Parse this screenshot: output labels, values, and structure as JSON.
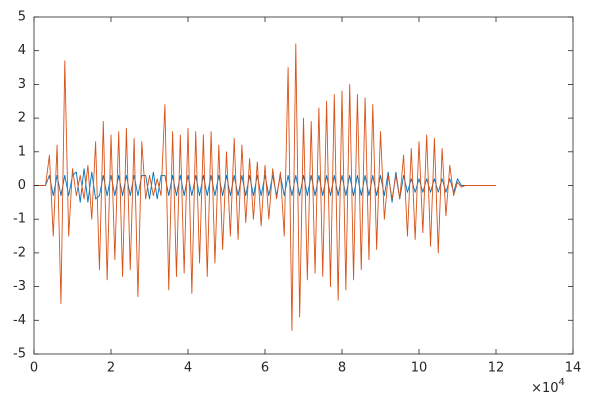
{
  "chart_data": {
    "type": "line",
    "x": [
      0,
      0.1,
      0.2,
      0.3,
      0.4,
      0.5,
      0.6,
      0.7,
      0.8,
      0.9,
      1,
      1.1,
      1.2,
      1.3,
      1.4,
      1.5,
      1.6,
      1.7,
      1.8,
      1.9,
      2,
      2.1,
      2.2,
      2.3,
      2.4,
      2.5,
      2.6,
      2.7,
      2.8,
      2.9,
      3,
      3.1,
      3.2,
      3.3,
      3.4,
      3.5,
      3.6,
      3.7,
      3.8,
      3.9,
      4,
      4.1,
      4.2,
      4.3,
      4.4,
      4.5,
      4.6,
      4.7,
      4.8,
      4.9,
      5,
      5.1,
      5.2,
      5.3,
      5.4,
      5.5,
      5.6,
      5.7,
      5.8,
      5.9,
      6,
      6.1,
      6.2,
      6.3,
      6.4,
      6.5,
      6.6,
      6.7,
      6.8,
      6.9,
      7,
      7.1,
      7.2,
      7.3,
      7.4,
      7.5,
      7.6,
      7.7,
      7.8,
      7.9,
      8,
      8.1,
      8.2,
      8.3,
      8.4,
      8.5,
      8.6,
      8.7,
      8.8,
      8.9,
      9,
      9.1,
      9.2,
      9.3,
      9.4,
      9.5,
      9.6,
      9.7,
      9.8,
      9.9,
      10,
      10.1,
      10.2,
      10.3,
      10.4,
      10.5,
      10.6,
      10.7,
      10.8,
      10.9,
      11,
      11.1,
      11.2,
      11.3,
      11.4,
      11.5,
      11.6,
      11.7,
      11.8,
      11.9,
      12
    ],
    "series": [
      {
        "color": "#0072bd",
        "values": [
          0,
          0,
          0,
          0,
          0.3,
          -0.3,
          0.3,
          -0.3,
          0.3,
          -0.3,
          0.3,
          0.4,
          -0.5,
          0.5,
          -0.5,
          0.4,
          -0.4,
          -0.3,
          0.3,
          -0.3,
          0.3,
          -0.3,
          0.3,
          -0.3,
          0.3,
          -0.3,
          0.3,
          -0.3,
          0.3,
          0.3,
          -0.4,
          0.4,
          -0.4,
          0.3,
          0.3,
          -0.3,
          0.3,
          -0.3,
          0.3,
          -0.3,
          0.3,
          -0.3,
          0.3,
          -0.3,
          0.3,
          -0.3,
          0.3,
          -0.3,
          0.3,
          -0.3,
          0.3,
          -0.3,
          0.3,
          -0.3,
          0.3,
          -0.3,
          0.3,
          -0.3,
          0.3,
          -0.3,
          0.3,
          -0.3,
          0.3,
          -0.3,
          0.3,
          -0.3,
          0.3,
          -0.3,
          0.3,
          -0.3,
          0.3,
          -0.3,
          0.3,
          -0.3,
          0.3,
          -0.3,
          0.3,
          -0.3,
          0.3,
          -0.3,
          0.3,
          -0.3,
          0.3,
          -0.3,
          0.3,
          -0.3,
          0.3,
          -0.3,
          0.3,
          -0.3,
          0.3,
          -0.3,
          0.4,
          -0.5,
          0.4,
          -0.4,
          0.3,
          -0.2,
          0.2,
          -0.2,
          0.2,
          -0.2,
          0.2,
          -0.2,
          0.2,
          -0.2,
          0.2,
          -0.2,
          0.2,
          -0.2,
          0.2,
          0,
          0,
          0,
          0,
          0,
          0,
          0,
          0,
          0,
          0
        ]
      },
      {
        "color": "#d95319",
        "values": [
          0,
          0,
          0,
          0,
          0.9,
          -1.5,
          1.2,
          -3.5,
          3.7,
          -1.5,
          0.5,
          -0.3,
          0.3,
          -0.4,
          0.6,
          -1.0,
          1.3,
          -2.5,
          1.9,
          -2.8,
          1.5,
          -2.2,
          1.6,
          -2.7,
          1.7,
          -2.5,
          1.4,
          -3.3,
          1.3,
          -0.4,
          0.3,
          -0.3,
          0.2,
          -0.3,
          2.4,
          -3.1,
          1.6,
          -2.7,
          1.5,
          -2.6,
          1.7,
          -3.2,
          1.6,
          -2.3,
          1.5,
          -2.7,
          1.6,
          -2.3,
          1.2,
          -1.9,
          1.0,
          -1.5,
          1.4,
          -1.6,
          1.2,
          -1.1,
          0.8,
          -1.0,
          0.7,
          -1.2,
          0.6,
          -1.0,
          0.5,
          -0.4,
          0.4,
          -1.5,
          3.5,
          -4.3,
          4.2,
          -3.9,
          2.0,
          -2.8,
          1.9,
          -2.6,
          2.3,
          -2.7,
          2.5,
          -3.0,
          2.7,
          -3.4,
          2.8,
          -3.1,
          3.0,
          -2.8,
          2.7,
          -2.5,
          2.6,
          -2.2,
          2.4,
          -1.9,
          1.6,
          -1.0,
          0.3,
          -0.4,
          0.3,
          -0.4,
          0.9,
          -1.5,
          1.1,
          -1.6,
          1.3,
          -1.4,
          1.5,
          -1.8,
          1.4,
          -2.0,
          1.1,
          -0.9,
          0.6,
          -0.3,
          0.1,
          -0.05,
          0,
          0,
          0,
          0,
          0,
          0,
          0,
          0,
          0
        ]
      }
    ],
    "xlim": [
      0,
      14
    ],
    "xticks": [
      0,
      2,
      4,
      6,
      8,
      10,
      12,
      14
    ],
    "ylim": [
      -5,
      5
    ],
    "yticks": [
      -5,
      -4,
      -3,
      -2,
      -1,
      0,
      1,
      2,
      3,
      4,
      5
    ],
    "x_multiplier_base": "×10",
    "x_multiplier_exponent": "4"
  }
}
